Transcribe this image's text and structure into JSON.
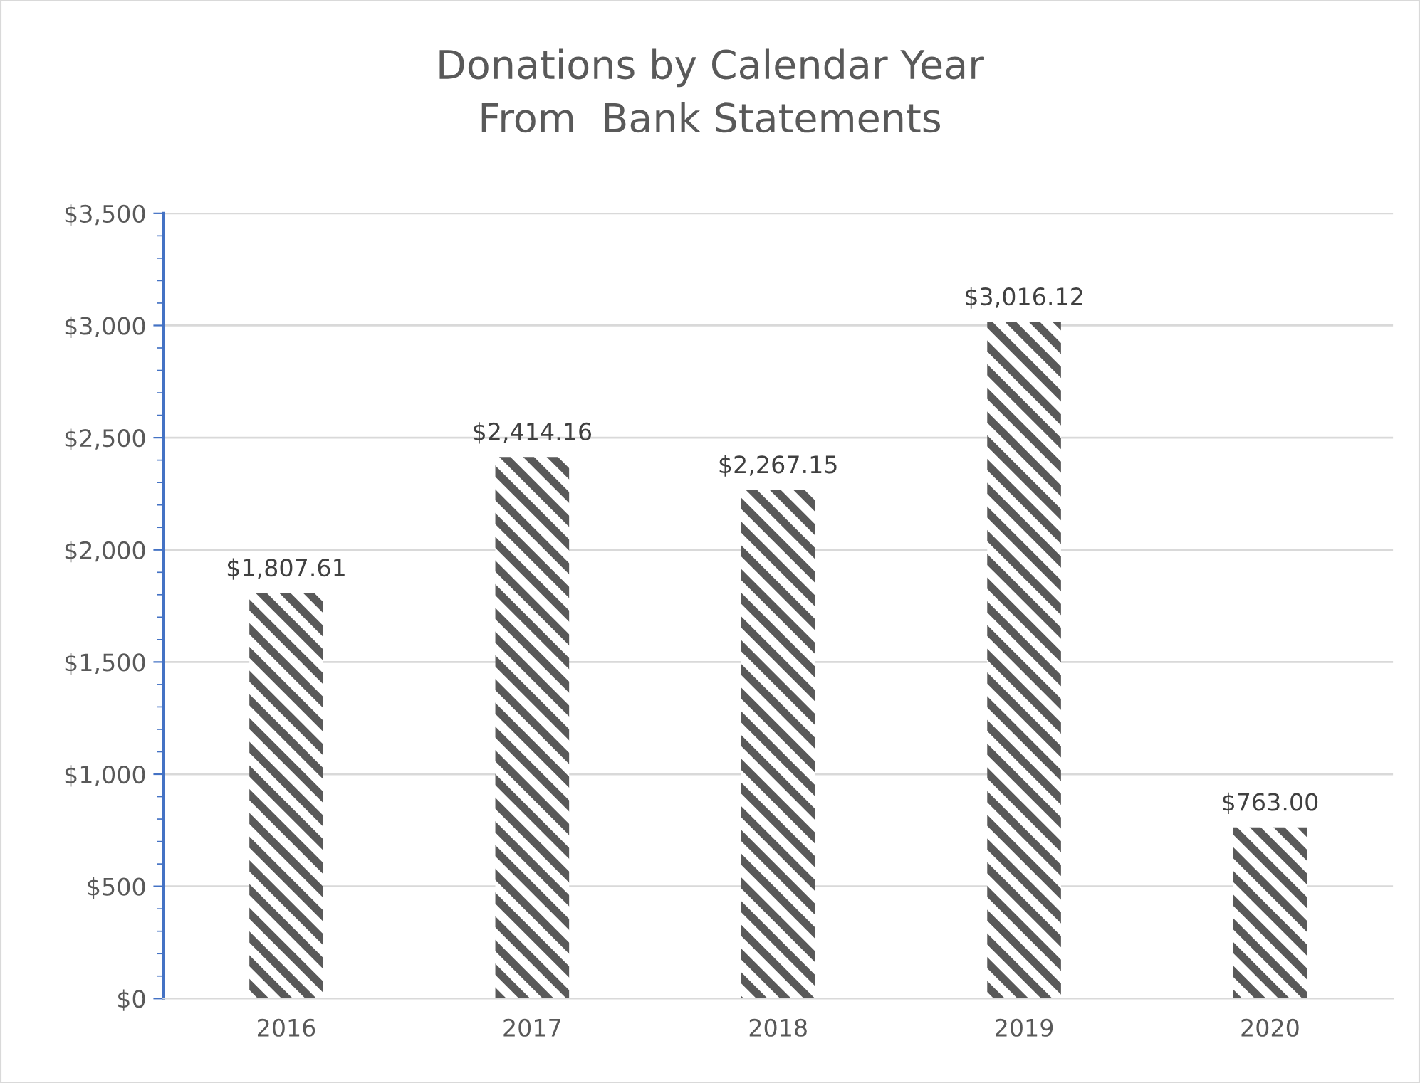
{
  "chart_data": {
    "type": "bar",
    "title": "Donations by Calendar Year\nFrom  Bank Statements",
    "categories": [
      "2016",
      "2017",
      "2018",
      "2019",
      "2020"
    ],
    "values": [
      1807.61,
      2414.16,
      2267.15,
      3016.12,
      763.0
    ],
    "value_labels": [
      "$1,807.61",
      "$2,414.16",
      "$2,267.15",
      "$3,016.12",
      "$763.00"
    ],
    "color": "#595959",
    "ylim": [
      0,
      3500
    ],
    "yticks": [
      {
        "value": 0,
        "label": "$0"
      },
      {
        "value": 500,
        "label": "$500"
      },
      {
        "value": 1000,
        "label": "$1,000"
      },
      {
        "value": 1500,
        "label": "$1,500"
      },
      {
        "value": 2000,
        "label": "$2,000"
      },
      {
        "value": 2500,
        "label": "$2,500"
      },
      {
        "value": 3000,
        "label": "$3,000"
      },
      {
        "value": 3500,
        "label": "$3,500"
      }
    ],
    "grid": "y"
  }
}
